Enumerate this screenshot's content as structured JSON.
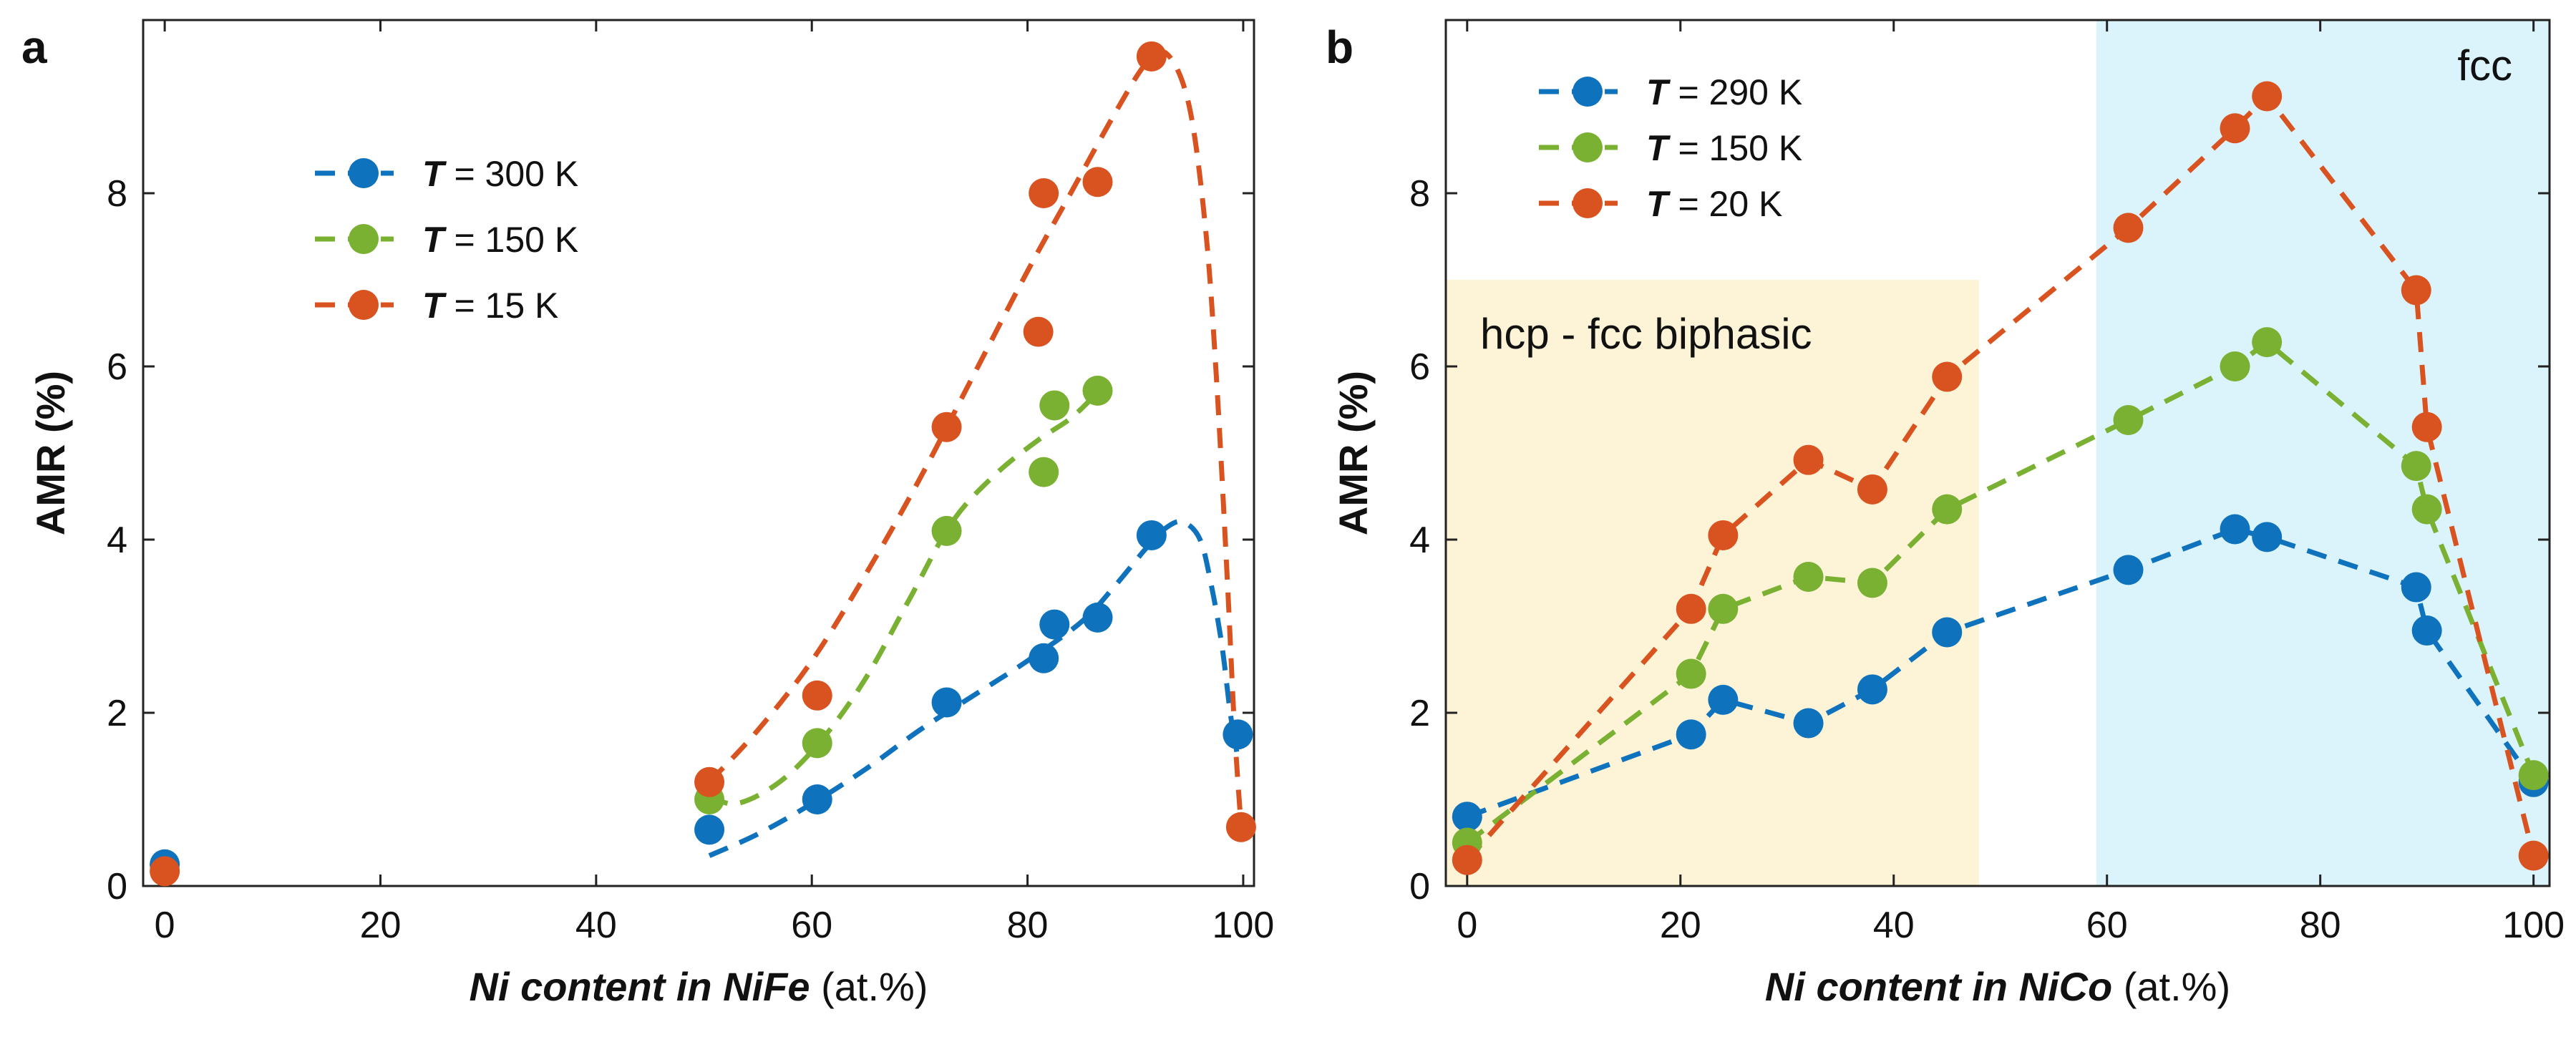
{
  "chart_data": [
    {
      "panel": "a",
      "type": "scatter",
      "xlabel_bold": "Ni content in NiFe",
      "xlabel_unit": " (at.%)",
      "ylabel": "AMR (%)",
      "xlim": [
        -2,
        101
      ],
      "ylim": [
        0,
        10
      ],
      "xticks": [
        0,
        20,
        40,
        60,
        80,
        100
      ],
      "yticks": [
        0,
        2,
        4,
        6,
        8
      ],
      "legend_position": "upper-left",
      "series": [
        {
          "name": "T = 300 K",
          "var": "T",
          "label": " = 300 K",
          "color": "#0e72bd",
          "x": [
            0,
            50.5,
            60.5,
            72.5,
            81.5,
            82.5,
            86.5,
            91.5,
            99.5
          ],
          "y": [
            0.25,
            0.65,
            1.0,
            2.12,
            2.63,
            3.02,
            3.1,
            4.05,
            1.75
          ],
          "fit_x": [
            50.5,
            55,
            60,
            65,
            70,
            75,
            80,
            85,
            88,
            91,
            93,
            94.5,
            96,
            97,
            98,
            98.8,
            99.4
          ],
          "fit_y": [
            0.35,
            0.6,
            0.95,
            1.35,
            1.8,
            2.2,
            2.6,
            3.05,
            3.45,
            3.9,
            4.15,
            4.2,
            4.0,
            3.5,
            2.8,
            2.0,
            1.55
          ]
        },
        {
          "name": "T = 150 K",
          "var": "T",
          "label": " = 150 K",
          "color": "#7ab132",
          "x": [
            50.5,
            60.5,
            72.5,
            81.5,
            82.5,
            86.5
          ],
          "y": [
            1.0,
            1.65,
            4.1,
            4.78,
            5.55,
            5.72
          ],
          "fit_x": [
            50.5,
            53,
            57,
            61,
            65,
            69,
            73,
            77,
            81,
            84,
            86.5
          ],
          "fit_y": [
            1.05,
            0.95,
            1.2,
            1.7,
            2.4,
            3.3,
            4.2,
            4.75,
            5.15,
            5.4,
            5.7
          ],
          "dash_only": true
        },
        {
          "name": "T = 15 K",
          "var": "T",
          "label": " = 15 K",
          "color": "#d95320",
          "x": [
            0,
            50.5,
            60.5,
            72.5,
            81,
            81.5,
            86.5,
            91.5,
            99.8
          ],
          "y": [
            0.17,
            1.2,
            2.2,
            5.3,
            6.4,
            8.0,
            8.13,
            9.58,
            0.68
          ],
          "fit_x": [
            50.5,
            55,
            60,
            65,
            70,
            75,
            80,
            84,
            88,
            91,
            93,
            95,
            96.5,
            97.5,
            98.5,
            99.2,
            99.8
          ],
          "fit_y": [
            1.2,
            1.8,
            2.6,
            3.6,
            4.7,
            5.9,
            7.1,
            8.0,
            8.9,
            9.5,
            9.6,
            9.0,
            7.6,
            5.9,
            3.6,
            1.8,
            0.7
          ]
        }
      ]
    },
    {
      "panel": "b",
      "type": "scatter",
      "xlabel_bold": "Ni content in NiCo",
      "xlabel_unit": " (at.%)",
      "ylabel": "AMR (%)",
      "xlim": [
        -2,
        101.5
      ],
      "ylim": [
        0,
        10
      ],
      "xticks": [
        0,
        20,
        40,
        60,
        80,
        100
      ],
      "yticks": [
        0,
        2,
        4,
        6,
        8
      ],
      "legend_position": "upper-left",
      "regions": [
        {
          "label": "hcp - fcc biphasic",
          "x0": -2,
          "x1": 48,
          "ymax": 7.0,
          "color": "#fdf3d6"
        },
        {
          "label": "fcc",
          "x0": 59,
          "x1": 101.5,
          "ymax": 10,
          "color": "#dbf3fb"
        }
      ],
      "series": [
        {
          "name": "T = 290 K",
          "var": "T",
          "label": " = 290 K",
          "color": "#0e72bd",
          "x": [
            0,
            21,
            24,
            32,
            38,
            45,
            62,
            72,
            75,
            89,
            90,
            100
          ],
          "y": [
            0.8,
            1.75,
            2.15,
            1.88,
            2.27,
            2.93,
            3.65,
            4.12,
            4.03,
            3.45,
            2.95,
            1.2
          ]
        },
        {
          "name": "T = 150 K",
          "var": "T",
          "label": " = 150 K",
          "color": "#7ab132",
          "x": [
            0,
            21,
            24,
            32,
            38,
            45,
            62,
            72,
            75,
            89,
            90,
            100
          ],
          "y": [
            0.5,
            2.45,
            3.2,
            3.57,
            3.5,
            4.35,
            5.38,
            6.0,
            6.28,
            4.85,
            4.35,
            1.28
          ]
        },
        {
          "name": "T = 20 K",
          "var": "T",
          "label": " = 20 K",
          "color": "#d95320",
          "x": [
            0,
            21,
            24,
            32,
            38,
            45,
            62,
            72,
            75,
            89,
            90,
            100
          ],
          "y": [
            0.3,
            3.2,
            4.05,
            4.92,
            4.58,
            5.88,
            7.6,
            8.75,
            9.12,
            6.88,
            5.3,
            0.35
          ]
        }
      ]
    }
  ]
}
